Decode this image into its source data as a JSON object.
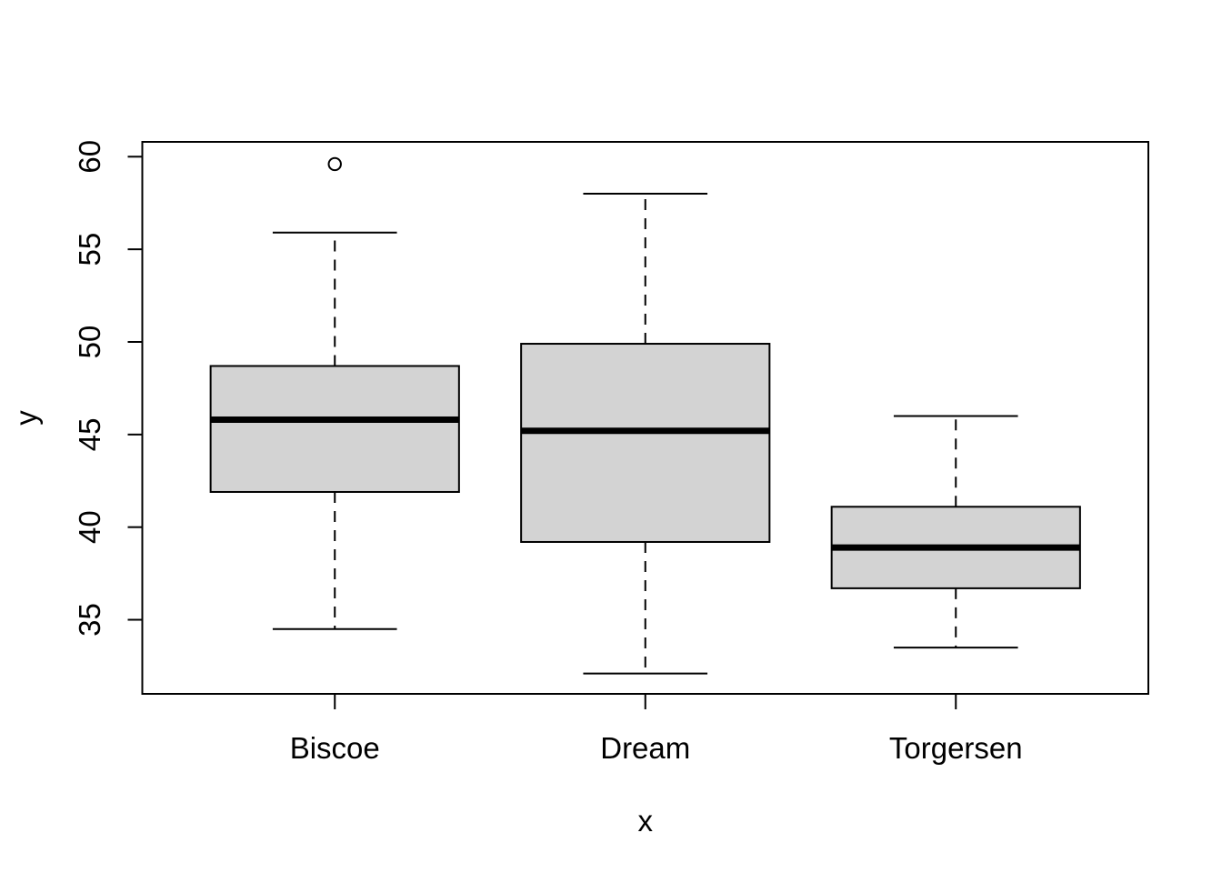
{
  "figure": {
    "background": "#FFFFFF",
    "line_color": "#000000",
    "box_fill": "#D3D3D3"
  },
  "chart_data": {
    "type": "boxplot",
    "title": "",
    "xlabel": "x",
    "ylabel": "y",
    "categories": [
      "Biscoe",
      "Dream",
      "Torgersen"
    ],
    "y_ticks": [
      35,
      40,
      45,
      50,
      55,
      60
    ],
    "ylim": [
      31.0,
      60.8
    ],
    "grid": false,
    "legend": "none",
    "box_fill": "#D3D3D3",
    "line_color": "#000000",
    "series": [
      {
        "name": "Biscoe",
        "whisker_low": 34.5,
        "q1": 41.9,
        "median": 45.8,
        "q3": 48.7,
        "whisker_high": 55.9,
        "outliers": [
          59.6
        ]
      },
      {
        "name": "Dream",
        "whisker_low": 32.1,
        "q1": 39.2,
        "median": 45.2,
        "q3": 49.9,
        "whisker_high": 58.0,
        "outliers": []
      },
      {
        "name": "Torgersen",
        "whisker_low": 33.5,
        "q1": 36.7,
        "median": 38.9,
        "q3": 41.1,
        "whisker_high": 46.0,
        "outliers": []
      }
    ]
  }
}
